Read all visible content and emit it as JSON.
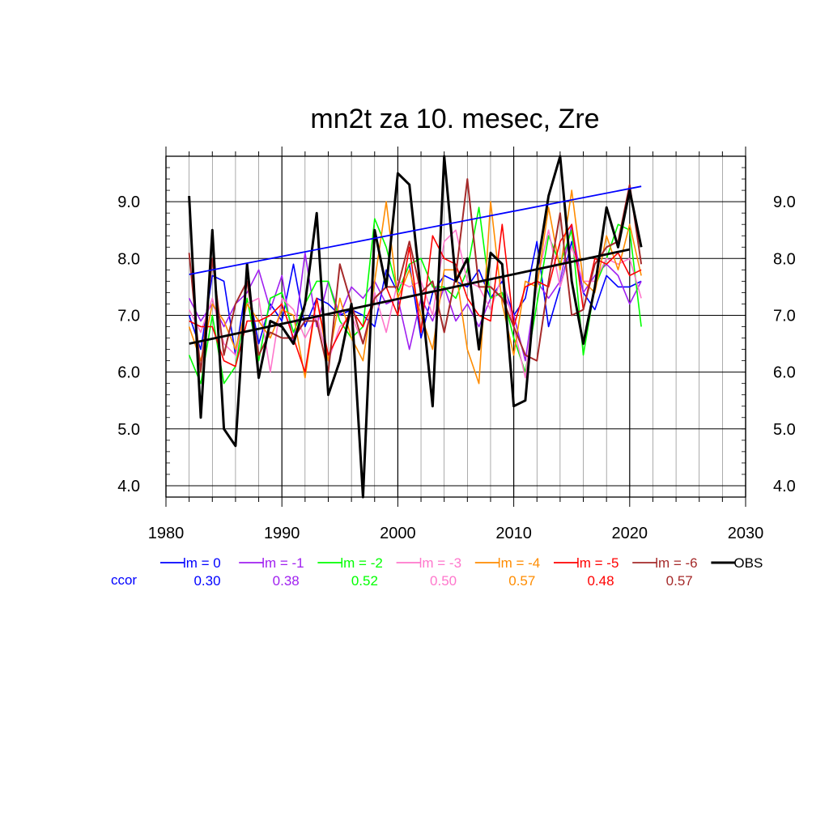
{
  "chart_data": {
    "type": "line",
    "title": "mn2t za 10. mesec, Zre",
    "xlabel": "",
    "ylabel": "",
    "xlim": [
      1980,
      2030
    ],
    "ylim": [
      3.8,
      9.8
    ],
    "x_ticks": [
      "1980",
      "1990",
      "2000",
      "2010",
      "2020",
      "2030"
    ],
    "y_ticks": [
      "4.0",
      "5.0",
      "6.0",
      "7.0",
      "8.0",
      "9.0"
    ],
    "grid": true,
    "legend_position": "bottom",
    "ccor_label": "ccor",
    "x": [
      1982,
      1983,
      1984,
      1985,
      1986,
      1987,
      1988,
      1989,
      1990,
      1991,
      1992,
      1993,
      1994,
      1995,
      1996,
      1997,
      1998,
      1999,
      2000,
      2001,
      2002,
      2003,
      2004,
      2005,
      2006,
      2007,
      2008,
      2009,
      2010,
      2011,
      2012,
      2013,
      2014,
      2015,
      2016,
      2017,
      2018,
      2019,
      2020,
      2021
    ],
    "series": [
      {
        "name": "lm = 0",
        "color": "#0000ff",
        "ccor": "0.30",
        "width": 1.6,
        "values": [
          7.0,
          6.4,
          7.7,
          7.6,
          6.3,
          7.6,
          6.5,
          7.2,
          6.9,
          7.9,
          6.8,
          7.3,
          7.2,
          7.0,
          7.1,
          7.0,
          6.8,
          7.8,
          7.4,
          7.9,
          6.6,
          7.4,
          7.7,
          7.6,
          7.5,
          7.8,
          7.3,
          7.6,
          7.0,
          7.3,
          8.3,
          6.8,
          7.5,
          8.3,
          7.4,
          7.1,
          7.7,
          7.5,
          7.5,
          7.6
        ]
      },
      {
        "name": "lm = -1",
        "color": "#a020f0",
        "ccor": "0.38",
        "width": 1.6,
        "values": [
          7.3,
          6.9,
          7.2,
          6.8,
          7.2,
          7.4,
          7.8,
          7.1,
          7.7,
          6.5,
          8.1,
          6.8,
          7.6,
          7.0,
          7.5,
          7.3,
          7.6,
          7.2,
          7.3,
          6.4,
          7.3,
          6.9,
          7.5,
          6.9,
          7.2,
          6.8,
          7.3,
          7.4,
          7.0,
          6.2,
          7.6,
          7.3,
          7.6,
          8.6,
          7.4,
          7.7,
          7.9,
          7.7,
          7.2,
          7.6
        ]
      },
      {
        "name": "lm = -2",
        "color": "#00ff00",
        "ccor": "0.52",
        "width": 1.6,
        "values": [
          6.3,
          5.8,
          7.0,
          5.8,
          6.1,
          7.3,
          6.2,
          7.3,
          7.4,
          6.7,
          7.2,
          7.6,
          7.6,
          6.9,
          6.6,
          6.8,
          8.7,
          8.2,
          7.4,
          7.9,
          8.0,
          7.5,
          7.5,
          7.3,
          7.8,
          8.9,
          7.3,
          7.4,
          6.6,
          6.0,
          7.2,
          8.4,
          7.9,
          8.5,
          6.3,
          7.5,
          8.0,
          8.6,
          8.5,
          6.8
        ]
      },
      {
        "name": "lm = -3",
        "color": "#ff77cc",
        "ccor": "0.50",
        "width": 1.6,
        "values": [
          7.1,
          6.7,
          7.3,
          6.5,
          6.3,
          7.2,
          7.3,
          6.0,
          7.3,
          7.1,
          6.6,
          7.0,
          6.2,
          6.8,
          7.0,
          6.5,
          7.4,
          6.7,
          7.6,
          7.5,
          7.6,
          7.0,
          8.3,
          8.5,
          7.6,
          7.5,
          7.1,
          7.7,
          6.8,
          5.9,
          7.6,
          8.5,
          7.5,
          8.2,
          7.6,
          7.6,
          8.0,
          7.9,
          8.0,
          7.3
        ]
      },
      {
        "name": "lm = -4",
        "color": "#ff8c00",
        "ccor": "0.57",
        "width": 1.6,
        "values": [
          6.8,
          6.2,
          7.2,
          6.9,
          6.4,
          7.2,
          6.9,
          6.6,
          7.1,
          7.0,
          5.9,
          7.3,
          6.2,
          7.3,
          6.6,
          6.2,
          7.6,
          9.0,
          7.3,
          7.8,
          7.0,
          6.4,
          7.8,
          7.8,
          6.4,
          5.8,
          9.0,
          7.2,
          6.3,
          7.6,
          7.5,
          8.9,
          7.8,
          9.2,
          7.6,
          7.4,
          8.4,
          7.8,
          8.6,
          7.7
        ]
      },
      {
        "name": "lm = -5",
        "color": "#ff0000",
        "ccor": "0.48",
        "width": 1.6,
        "values": [
          6.9,
          6.8,
          6.8,
          6.2,
          6.1,
          6.9,
          6.9,
          7.0,
          7.2,
          6.6,
          6.0,
          7.3,
          6.3,
          6.7,
          7.1,
          6.8,
          7.3,
          7.5,
          7.0,
          8.2,
          6.7,
          8.4,
          8.0,
          7.9,
          7.3,
          7.0,
          6.9,
          8.6,
          6.8,
          7.5,
          7.6,
          7.5,
          8.3,
          8.6,
          7.1,
          8.0,
          7.9,
          8.1,
          7.7,
          7.8
        ]
      },
      {
        "name": "lm = -6",
        "color": "#a52a2a",
        "ccor": "0.57",
        "width": 2.0,
        "values": [
          8.1,
          6.0,
          8.0,
          6.3,
          7.2,
          7.6,
          6.3,
          6.7,
          6.6,
          6.6,
          6.9,
          6.9,
          6.0,
          7.9,
          7.2,
          6.5,
          7.3,
          7.5,
          7.5,
          8.3,
          7.4,
          7.6,
          6.7,
          7.7,
          9.4,
          7.5,
          7.5,
          7.3,
          6.8,
          6.3,
          6.2,
          7.6,
          8.8,
          7.0,
          7.1,
          7.9,
          8.2,
          8.3,
          9.3,
          7.9
        ]
      },
      {
        "name": "OBS",
        "color": "#000000",
        "ccor": "",
        "width": 3.0,
        "values": [
          9.1,
          5.2,
          8.5,
          5.0,
          4.7,
          7.9,
          5.9,
          6.9,
          6.8,
          6.5,
          7.2,
          8.8,
          5.6,
          6.2,
          7.2,
          3.8,
          8.5,
          7.5,
          9.5,
          9.3,
          7.4,
          5.4,
          9.8,
          7.6,
          8.0,
          6.4,
          8.1,
          7.9,
          5.4,
          5.5,
          7.8,
          9.1,
          9.8,
          7.6,
          6.5,
          7.5,
          8.9,
          8.2,
          9.2,
          8.2
        ]
      }
    ],
    "trend_lines": [
      {
        "name": "lm = 0 trend",
        "color": "#0000ff",
        "x": [
          1982,
          2021
        ],
        "y": [
          7.72,
          9.27
        ],
        "width": 1.8
      },
      {
        "name": "OBS trend",
        "color": "#000000",
        "x": [
          1982,
          2020
        ],
        "y": [
          6.5,
          8.16
        ],
        "width": 2.8
      }
    ]
  }
}
